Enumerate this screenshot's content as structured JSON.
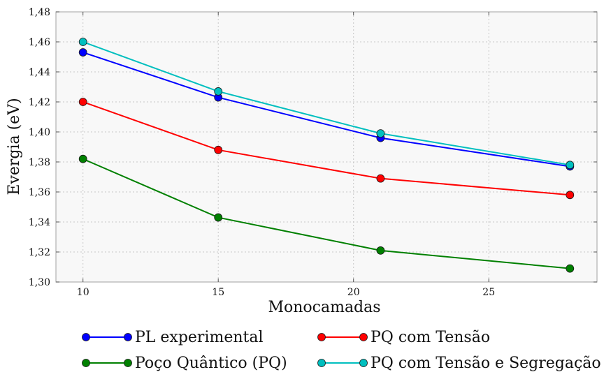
{
  "chart_data": {
    "type": "line",
    "xlabel": "Monocamadas",
    "ylabel": "Evergia (eV)",
    "xlim": [
      9,
      29
    ],
    "ylim": [
      1.3,
      1.48
    ],
    "xticks": [
      10,
      15,
      20,
      25
    ],
    "xtick_labels": [
      "10",
      "15",
      "20",
      "25"
    ],
    "yticks": [
      1.3,
      1.32,
      1.34,
      1.36,
      1.38,
      1.4,
      1.42,
      1.44,
      1.46,
      1.48
    ],
    "ytick_labels": [
      "1,30",
      "1,32",
      "1,34",
      "1,36",
      "1,38",
      "1,40",
      "1,42",
      "1,44",
      "1,46",
      "1,48"
    ],
    "grid": true,
    "legend_position": "bottom",
    "x": [
      10,
      15,
      21,
      28
    ],
    "series": [
      {
        "name": "PL experimental",
        "color": "#0000ff",
        "values": [
          1.453,
          1.423,
          1.396,
          1.377
        ]
      },
      {
        "name": "Poço Quântico (PQ)",
        "color": "#008000",
        "values": [
          1.382,
          1.343,
          1.321,
          1.309
        ]
      },
      {
        "name": "PQ com Tensão",
        "color": "#ff0000",
        "values": [
          1.42,
          1.388,
          1.369,
          1.358
        ]
      },
      {
        "name": "PQ com Tensão e Segregação",
        "color": "#00bfbf",
        "values": [
          1.46,
          1.427,
          1.399,
          1.378
        ]
      }
    ]
  }
}
